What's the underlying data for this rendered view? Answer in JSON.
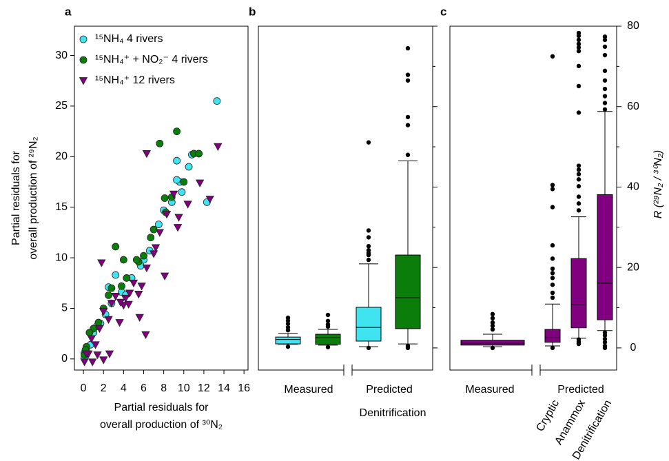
{
  "chart_data": [
    {
      "type": "scatter",
      "panel_label": "a",
      "xlabel": [
        "Partial residuals for",
        "overall production of ³⁰N₂"
      ],
      "ylabel": [
        "Partial residuals for",
        "overall production of ²⁹N₂"
      ],
      "xlim": [
        -0.9,
        16.4
      ],
      "ylim": [
        -1.1,
        32.9
      ],
      "xticks": [
        0,
        2,
        4,
        6,
        8,
        10,
        12,
        14,
        16
      ],
      "yticks": [
        0,
        5,
        10,
        15,
        20,
        25,
        30
      ],
      "legend": "upper left",
      "series": [
        {
          "name": "¹⁵NH₄ 4 rivers",
          "color": "#40e4f0",
          "marker": "circle",
          "x": [
            13.3,
            12.3,
            10.5,
            10.8,
            9.3,
            9.6,
            9.3,
            8,
            7.5,
            6.6,
            5.7,
            4.8,
            3.8,
            3.2,
            2.8,
            2.2,
            1.7,
            1.3,
            1,
            0.7,
            0.3,
            0.1,
            0.1,
            2.5,
            4.2,
            6,
            8.8,
            9.8
          ],
          "values": [
            25.5,
            15.5,
            19,
            20.2,
            19.6,
            17.5,
            17.7,
            14.7,
            13.3,
            10.7,
            9.2,
            8,
            6.6,
            8.3,
            5.5,
            4.4,
            3.5,
            3.2,
            2.6,
            1.4,
            0.8,
            0.6,
            0.1,
            7.1,
            6.3,
            9.8,
            15.5,
            16.5
          ]
        },
        {
          "name": "¹⁵NH₄⁺ + NO₂⁻ 4 rivers",
          "color": "#0b7d0b",
          "marker": "circle",
          "x": [
            9.3,
            7.6,
            11,
            11.5,
            10,
            8.1,
            8.8,
            8.2,
            6.7,
            6,
            5.5,
            4.3,
            3.2,
            4,
            3.8,
            2.8,
            2.5,
            2,
            1.5,
            1,
            0.6,
            0.3,
            0.1,
            0.2,
            5.3,
            7
          ],
          "values": [
            22.5,
            21.3,
            20.3,
            20.3,
            17.5,
            15.9,
            16,
            14.5,
            12,
            10.2,
            9.6,
            8,
            11.1,
            9.8,
            7.2,
            7,
            6.3,
            5,
            3.6,
            3,
            2.6,
            1.2,
            0.4,
            0.9,
            9.8,
            12.8
          ]
        },
        {
          "name": "¹⁵NH₄⁺ 12 rivers",
          "color": "#800080",
          "marker": "triangle-down",
          "x": [
            13.4,
            6.3,
            12.6,
            11.6,
            10.4,
            9.5,
            9,
            8.3,
            7.6,
            7.2,
            8.1,
            7,
            6.3,
            5.8,
            5.5,
            5,
            4.6,
            4.2,
            4,
            3.7,
            3.2,
            2.8,
            2.5,
            2,
            1.6,
            1.8,
            1.2,
            0.8,
            0.5,
            0.3,
            0.1,
            2,
            2.6,
            1.4,
            0.9,
            3.6,
            5.6,
            6.2,
            9.4,
            4.5
          ],
          "values": [
            21,
            20.3,
            15.8,
            17.4,
            15.3,
            14,
            16.3,
            14.3,
            12.5,
            11,
            8.2,
            10.4,
            9,
            7.2,
            6.4,
            7.5,
            6.5,
            6,
            5.3,
            5.6,
            6.2,
            5.5,
            3.9,
            4.7,
            3,
            9.5,
            1.4,
            2,
            0.5,
            0.5,
            -0.3,
            -0.1,
            0.5,
            0.4,
            -0.3,
            3.6,
            4.1,
            2.4,
            13,
            5.4
          ]
        }
      ]
    },
    {
      "type": "box",
      "panel_label": "b",
      "xlabel": "Denitrification",
      "ylim": [
        -5.5,
        80
      ],
      "yticks": [
        0,
        20,
        40,
        60,
        80
      ],
      "yminor_ticks": [
        10,
        30,
        50,
        70
      ],
      "tick_labels": false,
      "groups": [
        {
          "label": "Measured",
          "boxes": [
            {
              "color": "#40e4f0",
              "q1": 1.0,
              "median": 2.1,
              "q3": 2.7,
              "whisker_low": 0.9,
              "whisker_high": 3.6,
              "outliers": [
                7.5,
                6.8,
                6.0,
                5.1,
                4.4,
                0.3
              ]
            },
            {
              "color": "#0b7d0b",
              "q1": 0.9,
              "median": 2.6,
              "q3": 3.4,
              "whisker_low": 0.7,
              "whisker_high": 4.6,
              "outliers": [
                8.2,
                6.7,
                5.8,
                5.3,
                0.2
              ]
            }
          ]
        },
        {
          "label": "Predicted",
          "boxes": [
            {
              "color": "#40e4f0",
              "q1": 1.7,
              "median": 5.1,
              "q3": 10.1,
              "whisker_low": 0.3,
              "whisker_high": 20.9,
              "outliers": [
                51.1,
                29.2,
                27.5,
                25.3,
                24.3,
                23.6,
                23.1,
                21.9,
                0
              ]
            },
            {
              "color": "#0b7d0b",
              "q1": 4.8,
              "median": 12.5,
              "q3": 23.1,
              "whisker_low": 1.0,
              "whisker_high": 46.5,
              "outliers": [
                74.5,
                67.9,
                66.5,
                57.4,
                55.4,
                48.0,
                0.5,
                0
              ]
            }
          ]
        }
      ]
    },
    {
      "type": "box",
      "panel_label": "c",
      "ylabel": "R (²⁹N₂ / ³⁰N₂)",
      "ylim": [
        -5.5,
        80
      ],
      "yticks": [
        0,
        20,
        40,
        60,
        80
      ],
      "yminor_ticks": [
        10,
        30,
        50,
        70
      ],
      "tick_labels": true,
      "groups": [
        {
          "label": "Measured",
          "boxes": [
            {
              "color": "#800080",
              "q1": 0.7,
              "median": 1.2,
              "q3": 1.9,
              "whisker_low": 0.3,
              "whisker_high": 3.4,
              "outliers": [
                8.4,
                7.4,
                6.3,
                5.5,
                4.6,
                0
              ]
            }
          ]
        },
        {
          "label": "Predicted",
          "boxes": [
            {
              "label": "Cryptic",
              "color": "#800080",
              "q1": 1.4,
              "median": 2.6,
              "q3": 4.6,
              "whisker_low": 0.5,
              "whisker_high": 10.9,
              "outliers": [
                72.5,
                40.5,
                39.5,
                35,
                25.5,
                22.2,
                19.7,
                18.6,
                17.4,
                15.7,
                13.7,
                12.5,
                0
              ]
            },
            {
              "label": "Anammox",
              "color": "#800080",
              "q1": 5,
              "median": 10.8,
              "q3": 22.2,
              "whisker_low": 2.4,
              "whisker_high": 32.6,
              "outliers": [
                78.3,
                77.6,
                76.6,
                75.6,
                74.7,
                73.8,
                70.1,
                65.1,
                58.5,
                45.3,
                44.3,
                43.2,
                41.9,
                40.2,
                37.6,
                35.9,
                34.2,
                2.1,
                1.5,
                1.0
              ]
            },
            {
              "label": "Denitrification",
              "color": "#800080",
              "q1": 7,
              "median": 16.1,
              "q3": 38.1,
              "whisker_low": 4.3,
              "whisker_high": 58.8,
              "outliers": [
                77.4,
                76.6,
                74.9,
                72.8,
                68.9,
                66.5,
                64.4,
                62.6,
                60.9,
                59.3,
                3.8,
                3.1,
                2.2,
                1.4,
                0.5,
                0
              ]
            }
          ]
        }
      ]
    }
  ]
}
